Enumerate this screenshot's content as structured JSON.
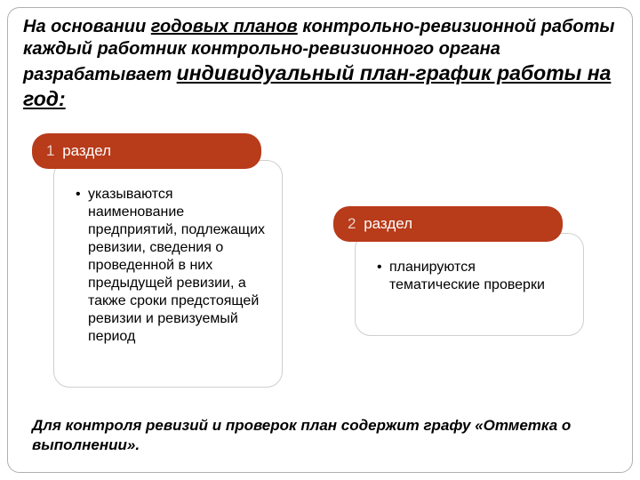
{
  "colors": {
    "accent": "#b83b1a",
    "accent_num": "#e8d0c8",
    "border_gray": "#cfcfcf",
    "frame_gray": "#b0b0b0",
    "bg": "#ffffff",
    "text": "#000000"
  },
  "heading": {
    "part1": "На основании ",
    "part2_u": "годовых планов",
    "part3": " контрольно-ревизионной работы каждый работник контрольно-ревизионного органа разрабатывает ",
    "part4_u": "индивидуальный план-график работы на год:"
  },
  "sections": [
    {
      "num": "1",
      "label": "раздел",
      "body": "указываются наименование предприятий, подлежащих ревизии, сведения о проведенной в них предыдущей ревизии, а также сроки предстоящей ревизии и ревизуемый период"
    },
    {
      "num": "2",
      "label": "раздел",
      "body": "планируются тематические проверки"
    }
  ],
  "footer": "Для контроля ревизий и проверок план содержит графу «Отметка о выполнении»."
}
